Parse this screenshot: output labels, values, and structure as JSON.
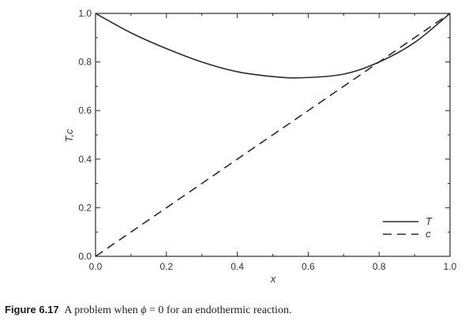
{
  "chart_data": {
    "type": "line",
    "xlabel": "x",
    "ylabel": "T,c",
    "xlim": [
      0.0,
      1.0
    ],
    "ylim": [
      0.0,
      1.0
    ],
    "xticks": [
      "0.0",
      "0.2",
      "0.4",
      "0.6",
      "0.8",
      "1.0"
    ],
    "yticks": [
      "0.0",
      "0.2",
      "0.4",
      "0.6",
      "0.8",
      "1.0"
    ],
    "grid": false,
    "legend_position": "bottom-right",
    "series": [
      {
        "name": "T",
        "style": "solid",
        "x": [
          0.0,
          0.1,
          0.2,
          0.3,
          0.4,
          0.5,
          0.58,
          0.7,
          0.8,
          0.9,
          1.0
        ],
        "y": [
          1.0,
          0.92,
          0.855,
          0.8,
          0.76,
          0.74,
          0.735,
          0.75,
          0.8,
          0.88,
          1.0
        ]
      },
      {
        "name": "c",
        "style": "dashed",
        "x": [
          0.0,
          1.0
        ],
        "y": [
          0.0,
          1.0
        ]
      }
    ]
  },
  "caption": {
    "label": "Figure 6.17",
    "text_before": "A problem when ",
    "symbol": "ϕ",
    "text_after": " = 0 for an endothermic reaction."
  }
}
